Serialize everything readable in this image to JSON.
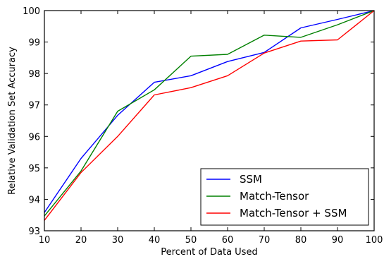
{
  "chart_data": {
    "type": "line",
    "title": "",
    "xlabel": "Percent of Data Used",
    "ylabel": "Relative Validation Set Accuracy",
    "xlim": [
      10,
      100
    ],
    "ylim": [
      93,
      100
    ],
    "x_ticks": [
      "10",
      "20",
      "30",
      "40",
      "50",
      "60",
      "70",
      "80",
      "90",
      "100"
    ],
    "y_ticks": [
      "93",
      "94",
      "95",
      "96",
      "97",
      "98",
      "99",
      "100"
    ],
    "grid": false,
    "legend_position": "bottom-right",
    "x": [
      10,
      20,
      30,
      40,
      50,
      60,
      70,
      80,
      90,
      100
    ],
    "series": [
      {
        "name": "SSM",
        "color": "#0000ff",
        "values": [
          93.58,
          95.3,
          96.67,
          97.72,
          97.93,
          98.38,
          98.67,
          99.45,
          99.72,
          100.0
        ]
      },
      {
        "name": "Match-Tensor",
        "color": "#008000",
        "values": [
          93.47,
          94.9,
          96.8,
          97.48,
          98.55,
          98.61,
          99.22,
          99.15,
          99.55,
          100.0
        ]
      },
      {
        "name": "Match-Tensor + SSM",
        "color": "#ff0000",
        "values": [
          93.33,
          94.85,
          96.0,
          97.32,
          97.55,
          97.93,
          98.65,
          99.03,
          99.07,
          100.0
        ]
      }
    ]
  }
}
